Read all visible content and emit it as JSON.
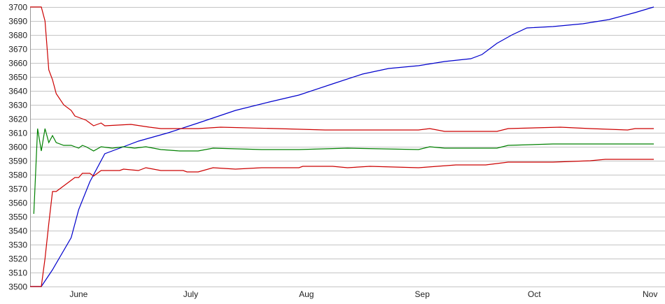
{
  "chart_data": {
    "type": "line",
    "title": "",
    "xlabel": "",
    "ylabel": "",
    "ylim": [
      3500,
      3700
    ],
    "yticks": [
      3500,
      3510,
      3520,
      3530,
      3540,
      3550,
      3560,
      3570,
      3580,
      3590,
      3600,
      3610,
      3620,
      3630,
      3640,
      3650,
      3660,
      3670,
      3680,
      3690,
      3700
    ],
    "xlim": [
      "05-19",
      "11-05"
    ],
    "xticks": [
      {
        "date": "06-01",
        "label": "June"
      },
      {
        "date": "07-01",
        "label": "July"
      },
      {
        "date": "08-01",
        "label": "Aug"
      },
      {
        "date": "09-01",
        "label": "Sep"
      },
      {
        "date": "10-01",
        "label": "Oct"
      },
      {
        "date": "11-01",
        "label": "Nov"
      }
    ],
    "grid": true,
    "legend": "none",
    "series": [
      {
        "color": "#0000cc",
        "points": [
          [
            "05-19",
            3500
          ],
          [
            "05-22",
            3500
          ],
          [
            "05-25",
            3512
          ],
          [
            "05-30",
            3535
          ],
          [
            "06-01",
            3555
          ],
          [
            "06-04",
            3575
          ],
          [
            "06-08",
            3595
          ],
          [
            "06-13",
            3600
          ],
          [
            "06-17",
            3604
          ],
          [
            "06-25",
            3610
          ],
          [
            "07-03",
            3617
          ],
          [
            "07-13",
            3626
          ],
          [
            "07-22",
            3632
          ],
          [
            "07-30",
            3637
          ],
          [
            "08-08",
            3645
          ],
          [
            "08-16",
            3652
          ],
          [
            "08-23",
            3656
          ],
          [
            "08-31",
            3658
          ],
          [
            "09-07",
            3661
          ],
          [
            "09-14",
            3663
          ],
          [
            "09-17",
            3666
          ],
          [
            "09-21",
            3674
          ],
          [
            "09-25",
            3680
          ],
          [
            "09-29",
            3685
          ],
          [
            "10-06",
            3686
          ],
          [
            "10-14",
            3688
          ],
          [
            "10-21",
            3691
          ],
          [
            "10-28",
            3696
          ],
          [
            "11-02",
            3700
          ]
        ]
      },
      {
        "color": "#cc0000",
        "points": [
          [
            "05-19",
            3700
          ],
          [
            "05-22",
            3700
          ],
          [
            "05-23",
            3690
          ],
          [
            "05-24",
            3655
          ],
          [
            "05-25",
            3648
          ],
          [
            "05-26",
            3638
          ],
          [
            "05-28",
            3630
          ],
          [
            "05-30",
            3626
          ],
          [
            "05-31",
            3622
          ],
          [
            "06-02",
            3620
          ],
          [
            "06-03",
            3619
          ],
          [
            "06-05",
            3615
          ],
          [
            "06-07",
            3617
          ],
          [
            "06-08",
            3615
          ],
          [
            "06-15",
            3616
          ],
          [
            "06-20",
            3614
          ],
          [
            "06-23",
            3613
          ],
          [
            "07-03",
            3613
          ],
          [
            "07-09",
            3614
          ],
          [
            "07-24",
            3613
          ],
          [
            "08-06",
            3612
          ],
          [
            "08-31",
            3612
          ],
          [
            "09-03",
            3613
          ],
          [
            "09-07",
            3611
          ],
          [
            "09-21",
            3611
          ],
          [
            "09-24",
            3613
          ],
          [
            "10-08",
            3614
          ],
          [
            "10-16",
            3613
          ],
          [
            "10-26",
            3612
          ],
          [
            "10-28",
            3613
          ],
          [
            "11-02",
            3613
          ]
        ]
      },
      {
        "color": "#008000",
        "points": [
          [
            "05-20",
            3552
          ],
          [
            "05-21",
            3613
          ],
          [
            "05-22",
            3597
          ],
          [
            "05-23",
            3613
          ],
          [
            "05-24",
            3603
          ],
          [
            "05-25",
            3608
          ],
          [
            "05-26",
            3603
          ],
          [
            "05-28",
            3601
          ],
          [
            "05-30",
            3601
          ],
          [
            "06-01",
            3599
          ],
          [
            "06-02",
            3601
          ],
          [
            "06-03",
            3600
          ],
          [
            "06-05",
            3597
          ],
          [
            "06-07",
            3600
          ],
          [
            "06-10",
            3599
          ],
          [
            "06-13",
            3600
          ],
          [
            "06-16",
            3599
          ],
          [
            "06-19",
            3600
          ],
          [
            "06-23",
            3598
          ],
          [
            "06-28",
            3597
          ],
          [
            "07-03",
            3597
          ],
          [
            "07-07",
            3599
          ],
          [
            "07-20",
            3598
          ],
          [
            "07-30",
            3598
          ],
          [
            "08-12",
            3599
          ],
          [
            "08-31",
            3598
          ],
          [
            "09-03",
            3600
          ],
          [
            "09-07",
            3599
          ],
          [
            "09-21",
            3599
          ],
          [
            "09-24",
            3601
          ],
          [
            "10-06",
            3602
          ],
          [
            "11-02",
            3602
          ]
        ]
      },
      {
        "color": "#cc0000",
        "points": [
          [
            "05-19",
            3500
          ],
          [
            "05-22",
            3500
          ],
          [
            "05-23",
            3520
          ],
          [
            "05-24",
            3545
          ],
          [
            "05-25",
            3568
          ],
          [
            "05-26",
            3568
          ],
          [
            "05-28",
            3572
          ],
          [
            "05-31",
            3578
          ],
          [
            "06-01",
            3578
          ],
          [
            "06-02",
            3581
          ],
          [
            "06-04",
            3581
          ],
          [
            "06-05",
            3579
          ],
          [
            "06-07",
            3583
          ],
          [
            "06-12",
            3583
          ],
          [
            "06-13",
            3584
          ],
          [
            "06-17",
            3583
          ],
          [
            "06-19",
            3585
          ],
          [
            "06-23",
            3583
          ],
          [
            "06-29",
            3583
          ],
          [
            "06-30",
            3582
          ],
          [
            "07-03",
            3582
          ],
          [
            "07-07",
            3585
          ],
          [
            "07-13",
            3584
          ],
          [
            "07-20",
            3585
          ],
          [
            "07-30",
            3585
          ],
          [
            "07-31",
            3586
          ],
          [
            "08-08",
            3586
          ],
          [
            "08-12",
            3585
          ],
          [
            "08-18",
            3586
          ],
          [
            "08-31",
            3585
          ],
          [
            "09-05",
            3586
          ],
          [
            "09-10",
            3587
          ],
          [
            "09-18",
            3587
          ],
          [
            "09-24",
            3589
          ],
          [
            "10-06",
            3589
          ],
          [
            "10-16",
            3590
          ],
          [
            "10-20",
            3591
          ],
          [
            "11-02",
            3591
          ]
        ]
      }
    ]
  }
}
